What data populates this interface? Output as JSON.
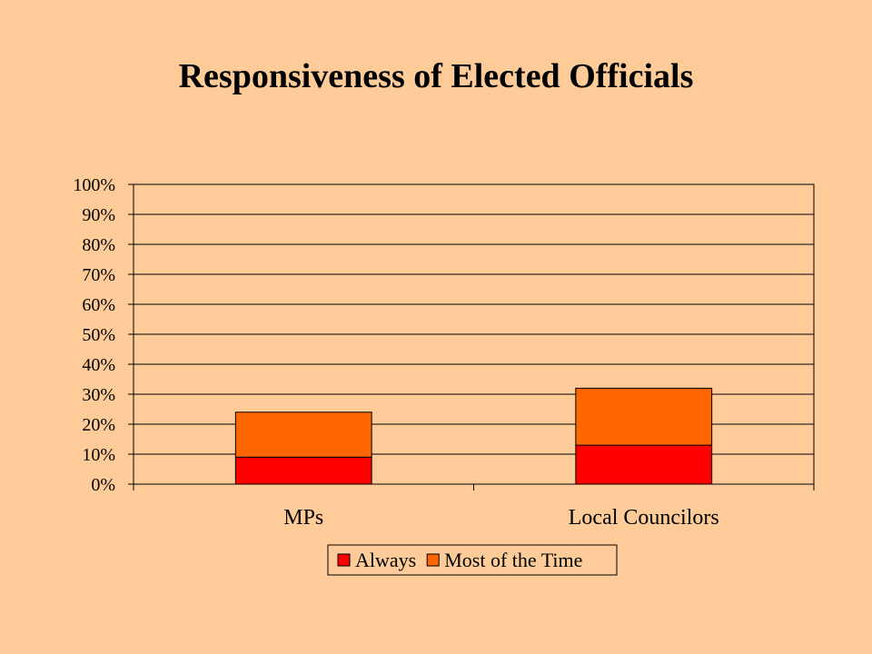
{
  "slide": {
    "title": "Responsiveness of Elected Officials"
  },
  "chart_data": {
    "type": "bar",
    "stacked": true,
    "title": "",
    "xlabel": "",
    "ylabel": "",
    "categories": [
      "MPs",
      "Local Councilors"
    ],
    "series": [
      {
        "name": "Always",
        "values": [
          9,
          13
        ]
      },
      {
        "name": "Most of the Time",
        "values": [
          15,
          19
        ]
      }
    ],
    "y_ticks": [
      "0%",
      "10%",
      "20%",
      "30%",
      "40%",
      "50%",
      "60%",
      "70%",
      "80%",
      "90%",
      "100%"
    ],
    "ylim": [
      0,
      100
    ],
    "y_unit": "%",
    "grid": true,
    "legend_position": "bottom",
    "colors": {
      "background": "#FFCC99",
      "Always": "#FF0000",
      "Most of the Time": "#FF6600",
      "gridline": "#000000"
    }
  }
}
